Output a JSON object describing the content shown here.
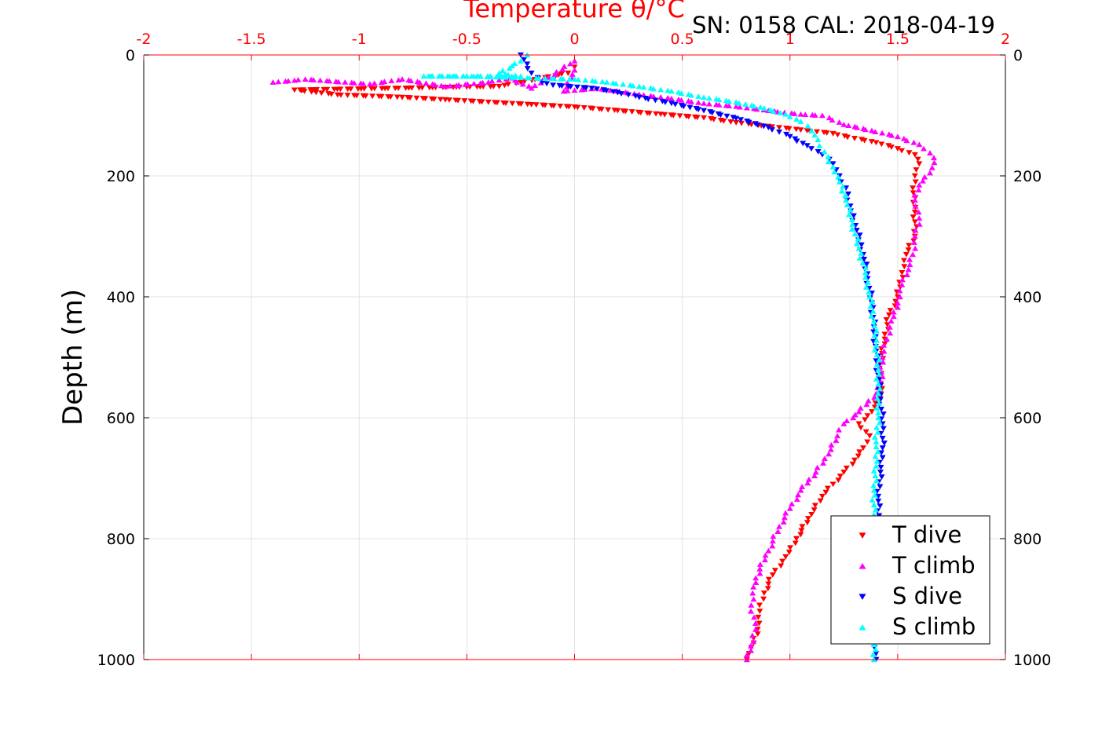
{
  "figure": {
    "title": "Temperature θ/°C",
    "subtitle": "SN: 0158  CAL: 2018-04-19"
  },
  "chart_data": {
    "type": "scatter",
    "title": "Temperature θ/°C",
    "subtitle": "SN: 0158  CAL: 2018-04-19",
    "xlabel": "Temperature θ/°C",
    "ylabel": "Depth (m)",
    "xlim": [
      -2,
      2
    ],
    "ylim": [
      0,
      1000
    ],
    "y_reversed": true,
    "x_axis_position": "top",
    "x_ticks": [
      -2,
      -1.5,
      -1,
      -0.5,
      0,
      0.5,
      1,
      1.5,
      2
    ],
    "y_ticks": [
      0,
      200,
      400,
      600,
      800,
      1000
    ],
    "grid": true,
    "legend": {
      "position": "bottom-right"
    },
    "colors": {
      "axis_x": "#ff0000",
      "axis_y": "#000000"
    },
    "series": [
      {
        "name": "T dive",
        "color": "#ff0000",
        "marker": "triangle-down",
        "points": [
          [
            0.0,
            20
          ],
          [
            -0.03,
            30
          ],
          [
            -0.25,
            45
          ],
          [
            -0.35,
            52
          ],
          [
            -1.3,
            58
          ],
          [
            -1.2,
            62
          ],
          [
            -1.1,
            66
          ],
          [
            -0.8,
            70
          ],
          [
            -0.6,
            74
          ],
          [
            -0.4,
            78
          ],
          [
            -0.2,
            82
          ],
          [
            0.0,
            86
          ],
          [
            0.2,
            92
          ],
          [
            0.4,
            98
          ],
          [
            0.6,
            104
          ],
          [
            0.75,
            112
          ],
          [
            0.9,
            118
          ],
          [
            1.05,
            124
          ],
          [
            1.2,
            130
          ],
          [
            1.3,
            138
          ],
          [
            1.4,
            145
          ],
          [
            1.5,
            155
          ],
          [
            1.58,
            165
          ],
          [
            1.6,
            180
          ],
          [
            1.58,
            200
          ],
          [
            1.57,
            220
          ],
          [
            1.58,
            260
          ],
          [
            1.58,
            300
          ],
          [
            1.54,
            330
          ],
          [
            1.52,
            360
          ],
          [
            1.5,
            400
          ],
          [
            1.46,
            430
          ],
          [
            1.44,
            470
          ],
          [
            1.42,
            510
          ],
          [
            1.42,
            560
          ],
          [
            1.38,
            590
          ],
          [
            1.32,
            610
          ],
          [
            1.37,
            630
          ],
          [
            1.34,
            650
          ],
          [
            1.3,
            670
          ],
          [
            1.25,
            690
          ],
          [
            1.2,
            710
          ],
          [
            1.15,
            730
          ],
          [
            1.1,
            760
          ],
          [
            1.03,
            800
          ],
          [
            0.98,
            830
          ],
          [
            0.92,
            860
          ],
          [
            0.88,
            890
          ],
          [
            0.86,
            920
          ],
          [
            0.85,
            950
          ],
          [
            0.82,
            980
          ],
          [
            0.8,
            1000
          ]
        ]
      },
      {
        "name": "T climb",
        "color": "#ff00ff",
        "marker": "triangle-up",
        "points": [
          [
            -1.4,
            45
          ],
          [
            -1.3,
            42
          ],
          [
            -1.25,
            40
          ],
          [
            -0.95,
            48
          ],
          [
            -0.8,
            40
          ],
          [
            -0.6,
            52
          ],
          [
            -0.4,
            45
          ],
          [
            -0.3,
            38
          ],
          [
            -0.2,
            55
          ],
          [
            0.0,
            10
          ],
          [
            0.0,
            25
          ],
          [
            -0.05,
            60
          ],
          [
            0.1,
            55
          ],
          [
            0.3,
            65
          ],
          [
            0.45,
            72
          ],
          [
            0.6,
            80
          ],
          [
            0.75,
            85
          ],
          [
            0.9,
            92
          ],
          [
            1.05,
            98
          ],
          [
            1.15,
            100
          ],
          [
            1.25,
            115
          ],
          [
            1.38,
            125
          ],
          [
            1.5,
            135
          ],
          [
            1.6,
            148
          ],
          [
            1.65,
            162
          ],
          [
            1.67,
            178
          ],
          [
            1.65,
            195
          ],
          [
            1.6,
            215
          ],
          [
            1.58,
            240
          ],
          [
            1.6,
            270
          ],
          [
            1.58,
            300
          ],
          [
            1.57,
            330
          ],
          [
            1.55,
            355
          ],
          [
            1.52,
            380
          ],
          [
            1.5,
            410
          ],
          [
            1.47,
            440
          ],
          [
            1.45,
            470
          ],
          [
            1.43,
            500
          ],
          [
            1.42,
            540
          ],
          [
            1.4,
            560
          ],
          [
            1.32,
            590
          ],
          [
            1.25,
            610
          ],
          [
            1.22,
            630
          ],
          [
            1.18,
            660
          ],
          [
            1.12,
            690
          ],
          [
            1.05,
            720
          ],
          [
            1.0,
            750
          ],
          [
            0.95,
            780
          ],
          [
            0.9,
            820
          ],
          [
            0.86,
            850
          ],
          [
            0.83,
            880
          ],
          [
            0.82,
            910
          ],
          [
            0.84,
            940
          ],
          [
            0.83,
            970
          ],
          [
            0.8,
            1000
          ]
        ]
      },
      {
        "name": "S dive",
        "color": "#0000ff",
        "marker": "triangle-down",
        "points": [
          [
            -0.25,
            0
          ],
          [
            -0.22,
            15
          ],
          [
            -0.2,
            30
          ],
          [
            -0.15,
            45
          ],
          [
            -0.1,
            50
          ],
          [
            0.08,
            55
          ],
          [
            0.2,
            62
          ],
          [
            0.3,
            70
          ],
          [
            0.45,
            80
          ],
          [
            0.6,
            92
          ],
          [
            0.75,
            105
          ],
          [
            0.9,
            120
          ],
          [
            1.0,
            135
          ],
          [
            1.08,
            150
          ],
          [
            1.15,
            165
          ],
          [
            1.2,
            180
          ],
          [
            1.23,
            200
          ],
          [
            1.26,
            220
          ],
          [
            1.28,
            250
          ],
          [
            1.31,
            290
          ],
          [
            1.34,
            330
          ],
          [
            1.36,
            370
          ],
          [
            1.38,
            410
          ],
          [
            1.39,
            450
          ],
          [
            1.4,
            490
          ],
          [
            1.41,
            530
          ],
          [
            1.42,
            570
          ],
          [
            1.43,
            610
          ],
          [
            1.43,
            650
          ],
          [
            1.42,
            690
          ],
          [
            1.41,
            730
          ],
          [
            1.41,
            770
          ],
          [
            1.4,
            810
          ],
          [
            1.4,
            850
          ],
          [
            1.4,
            890
          ],
          [
            1.4,
            930
          ],
          [
            1.4,
            970
          ],
          [
            1.4,
            1000
          ]
        ]
      },
      {
        "name": "S climb",
        "color": "#00ffff",
        "marker": "triangle-up",
        "points": [
          [
            -0.22,
            0
          ],
          [
            -0.25,
            10
          ],
          [
            -0.35,
            30
          ],
          [
            -0.25,
            35
          ],
          [
            -0.7,
            35
          ],
          [
            -0.5,
            35
          ],
          [
            0.0,
            40
          ],
          [
            0.15,
            45
          ],
          [
            0.3,
            52
          ],
          [
            0.45,
            60
          ],
          [
            0.6,
            70
          ],
          [
            0.75,
            78
          ],
          [
            0.88,
            88
          ],
          [
            0.98,
            98
          ],
          [
            1.05,
            110
          ],
          [
            1.1,
            125
          ],
          [
            1.13,
            140
          ],
          [
            1.16,
            160
          ],
          [
            1.2,
            185
          ],
          [
            1.23,
            210
          ],
          [
            1.26,
            240
          ],
          [
            1.29,
            280
          ],
          [
            1.32,
            320
          ],
          [
            1.35,
            360
          ],
          [
            1.37,
            400
          ],
          [
            1.39,
            440
          ],
          [
            1.4,
            480
          ],
          [
            1.41,
            520
          ],
          [
            1.41,
            560
          ],
          [
            1.41,
            600
          ],
          [
            1.4,
            640
          ],
          [
            1.4,
            680
          ],
          [
            1.39,
            720
          ],
          [
            1.39,
            760
          ],
          [
            1.39,
            800
          ],
          [
            1.39,
            850
          ],
          [
            1.39,
            900
          ],
          [
            1.39,
            950
          ],
          [
            1.39,
            1000
          ]
        ]
      }
    ]
  }
}
